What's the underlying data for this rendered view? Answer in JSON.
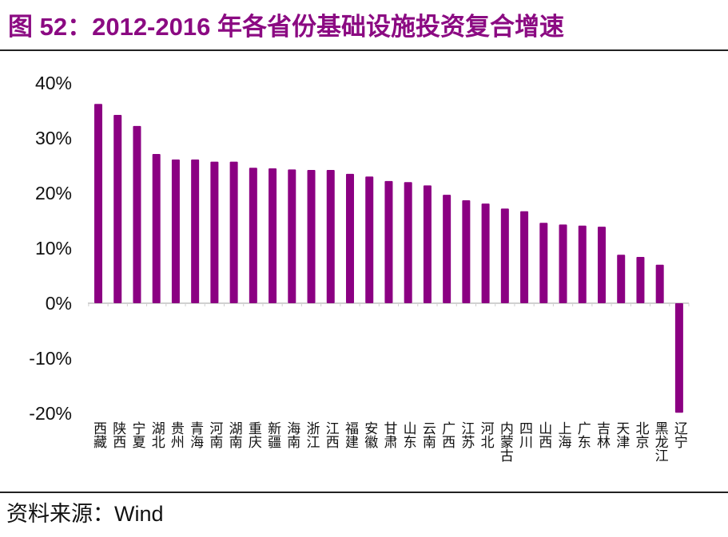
{
  "title": "图 52：2012-2016 年各省份基础设施投资复合增速",
  "source": "资料来源：Wind",
  "chart_data": {
    "type": "bar",
    "title": "图 52：2012-2016 年各省份基础设施投资复合增速",
    "xlabel": "",
    "ylabel": "",
    "ylim": [
      -20,
      40
    ],
    "yticks": [
      "40%",
      "30%",
      "20%",
      "10%",
      "0%",
      "-10%",
      "-20%"
    ],
    "ytick_values": [
      40,
      30,
      20,
      10,
      0,
      -10,
      -20
    ],
    "grid": false,
    "legend": "none",
    "color": "#8B0082",
    "categories": [
      "西藏",
      "陕西",
      "宁夏",
      "湖北",
      "贵州",
      "青海",
      "河南",
      "湖南",
      "重庆",
      "新疆",
      "海南",
      "浙江",
      "江西",
      "福建",
      "安徽",
      "甘肃",
      "山东",
      "云南",
      "广西",
      "江苏",
      "河北",
      "内蒙古",
      "四川",
      "山西",
      "上海",
      "广东",
      "吉林",
      "天津",
      "北京",
      "黑龙江",
      "辽宁"
    ],
    "values": [
      36.2,
      34.2,
      32.2,
      27.1,
      26.1,
      26.1,
      25.7,
      25.7,
      24.6,
      24.5,
      24.3,
      24.2,
      24.2,
      23.5,
      23.0,
      22.2,
      22.0,
      21.4,
      19.7,
      18.7,
      18.1,
      17.2,
      16.7,
      14.6,
      14.3,
      14.1,
      13.9,
      8.8,
      8.4,
      7.0,
      -19.9
    ]
  }
}
